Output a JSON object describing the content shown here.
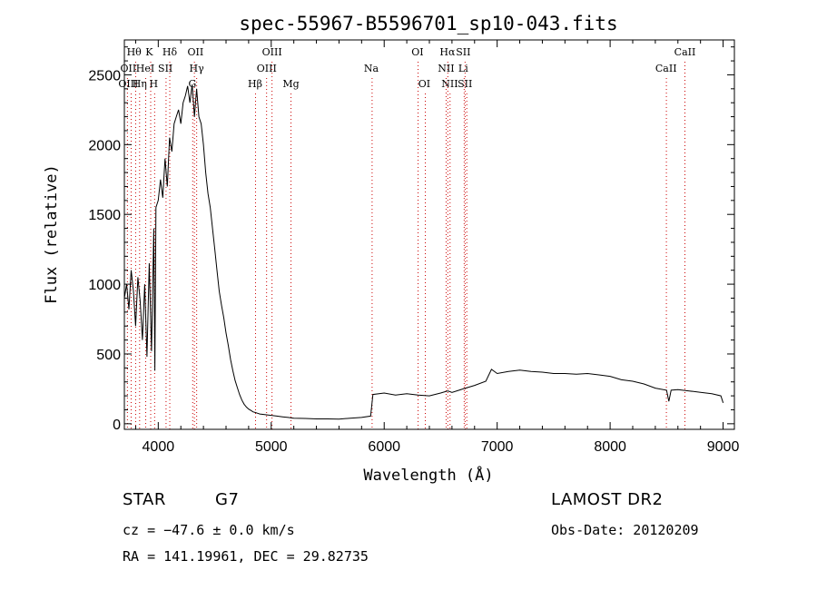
{
  "chart_data": {
    "type": "line",
    "title": "spec-55967-B5596701_sp10-043.fits",
    "xlabel": "Wavelength (Å)",
    "ylabel": "Flux (relative)",
    "xlim": [
      3700,
      9100
    ],
    "ylim": [
      -40,
      2750
    ],
    "xticks": [
      4000,
      5000,
      6000,
      7000,
      8000,
      9000
    ],
    "yticks": [
      0,
      500,
      1000,
      1500,
      2000,
      2500
    ],
    "grid": false,
    "line_color": "#000000",
    "marker_color": "#cc0000",
    "series": [
      {
        "x": [
          3700,
          3720,
          3740,
          3760,
          3780,
          3800,
          3820,
          3840,
          3860,
          3880,
          3900,
          3920,
          3940,
          3960,
          3970,
          3980,
          4000,
          4020,
          4040,
          4060,
          4080,
          4100,
          4120,
          4140,
          4160,
          4180,
          4200,
          4220,
          4240,
          4260,
          4280,
          4300,
          4320,
          4340,
          4360,
          4380,
          4400,
          4420,
          4440,
          4460,
          4480,
          4500,
          4520,
          4540,
          4560,
          4580,
          4600,
          4620,
          4640,
          4660,
          4680,
          4700,
          4720,
          4740,
          4760,
          4780,
          4800,
          4820,
          4840,
          4860,
          4880,
          4900,
          4950,
          5000,
          5050,
          5100,
          5150,
          5200,
          5300,
          5400,
          5500,
          5600,
          5700,
          5800,
          5880,
          5900,
          6000,
          6100,
          6200,
          6300,
          6400,
          6500,
          6563,
          6600,
          6700,
          6800,
          6900,
          6950,
          7000,
          7100,
          7200,
          7300,
          7400,
          7500,
          7600,
          7700,
          7800,
          7900,
          8000,
          8100,
          8200,
          8300,
          8400,
          8500,
          8520,
          8540,
          8600,
          8700,
          8800,
          8900,
          8980,
          9000
        ],
        "y": [
          900,
          1000,
          820,
          1100,
          950,
          700,
          1050,
          880,
          600,
          1000,
          480,
          1150,
          520,
          1400,
          380,
          1550,
          1600,
          1750,
          1620,
          1900,
          1700,
          2050,
          1950,
          2150,
          2200,
          2250,
          2150,
          2300,
          2350,
          2420,
          2300,
          2430,
          2200,
          2400,
          2200,
          2150,
          2000,
          1800,
          1650,
          1550,
          1400,
          1250,
          1100,
          950,
          850,
          760,
          650,
          560,
          460,
          380,
          310,
          260,
          210,
          170,
          140,
          120,
          105,
          95,
          85,
          80,
          75,
          70,
          65,
          60,
          55,
          50,
          45,
          40,
          38,
          35,
          35,
          33,
          40,
          45,
          55,
          210,
          220,
          205,
          215,
          205,
          200,
          220,
          235,
          225,
          250,
          275,
          305,
          390,
          360,
          375,
          385,
          375,
          370,
          360,
          360,
          355,
          360,
          350,
          340,
          315,
          305,
          285,
          255,
          240,
          160,
          240,
          245,
          235,
          225,
          215,
          200,
          150
        ]
      }
    ],
    "lines": [
      {
        "label": "Hθ",
        "row": 1,
        "lx": 3800,
        "label_x": 3786
      },
      {
        "label": "K",
        "row": 1,
        "lx": 3933,
        "label_x": 3920
      },
      {
        "label": "Hδ",
        "row": 1,
        "lx": 4102,
        "label_x": 4102
      },
      {
        "label": "OII",
        "row": 1,
        "lx": 4320,
        "label_x": 4330
      },
      {
        "label": "OII",
        "row": 2,
        "lx": 3727,
        "label_x": 3735
      },
      {
        "label": "HeI",
        "row": 2,
        "lx": 3889,
        "label_x": 3885
      },
      {
        "label": "SII",
        "row": 2,
        "lx": 4069,
        "label_x": 4063
      },
      {
        "label": "Hγ",
        "row": 2,
        "lx": 4340,
        "label_x": 4340
      },
      {
        "label": "OIII",
        "row": 3,
        "lx": 3760,
        "label_x": 3735
      },
      {
        "label": "Hη",
        "row": 3,
        "lx": 3835,
        "label_x": 3835
      },
      {
        "label": "H",
        "row": 3,
        "lx": 3968,
        "label_x": 3960
      },
      {
        "label": "G",
        "row": 3,
        "lx": 4305,
        "label_x": 4302
      },
      {
        "label": "OIII",
        "row": 1,
        "lx": 5007,
        "label_x": 5007
      },
      {
        "label": "OIII",
        "row": 2,
        "lx": 4959,
        "label_x": 4960
      },
      {
        "label": "Hβ",
        "row": 3,
        "lx": 4861,
        "label_x": 4857
      },
      {
        "label": "Mg",
        "row": 3,
        "lx": 5175,
        "label_x": 5175
      },
      {
        "label": "Na",
        "row": 2,
        "lx": 5893,
        "label_x": 5885
      },
      {
        "label": "OI",
        "row": 1,
        "lx": 6300,
        "label_x": 6295
      },
      {
        "label": "OI",
        "row": 3,
        "lx": 6364,
        "label_x": 6355
      },
      {
        "label": "Hα",
        "row": 1,
        "lx": 6563,
        "label_x": 6560
      },
      {
        "label": "SII",
        "row": 1,
        "lx": 6716,
        "label_x": 6700
      },
      {
        "label": "NII",
        "row": 2,
        "lx": 6548,
        "label_x": 6548
      },
      {
        "label": "Li",
        "row": 2,
        "lx": 6708,
        "label_x": 6700
      },
      {
        "label": "NII",
        "row": 3,
        "lx": 6583,
        "label_x": 6580
      },
      {
        "label": "SII",
        "row": 3,
        "lx": 6731,
        "label_x": 6715
      },
      {
        "label": "CaII",
        "row": 1,
        "lx": 8662,
        "label_x": 8662
      },
      {
        "label": "CaII",
        "row": 2,
        "lx": 8498,
        "label_x": 8495
      }
    ]
  },
  "info": {
    "class": "STAR",
    "subclass": "G7",
    "survey": "LAMOST DR2",
    "cz": "cz = −47.6 ± 0.0 km/s",
    "obs_date": "Obs-Date: 20120209",
    "radec": "RA = 141.19961, DEC =  29.82735"
  }
}
